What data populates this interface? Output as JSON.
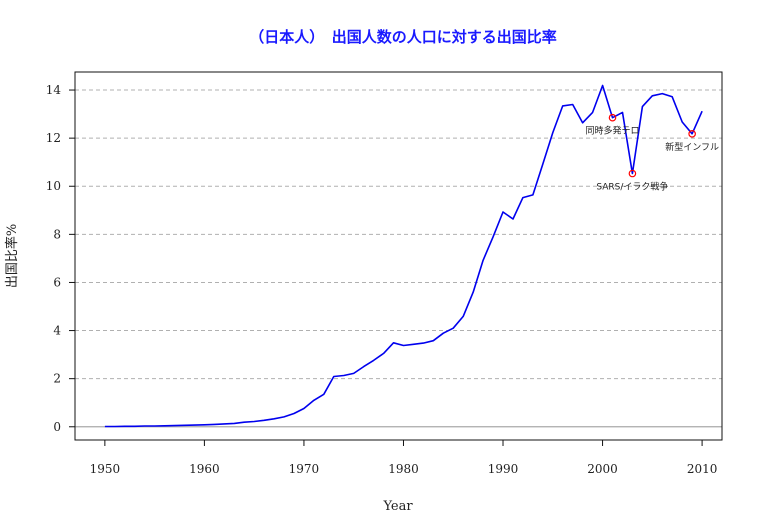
{
  "chart_data": {
    "type": "line",
    "title": "（日本人）　出国人数の人口に対する出国比率",
    "xlabel": "Year",
    "ylabel": "出国比率%",
    "xlim": [
      1947,
      2012
    ],
    "ylim": [
      -0.55,
      14.75
    ],
    "xticks": [
      1950,
      1960,
      1970,
      1980,
      1990,
      2000,
      2010
    ],
    "yticks": [
      0,
      2,
      4,
      6,
      8,
      10,
      12,
      14
    ],
    "grid": "horizontal dashed",
    "colors": {
      "line": "#0000ee",
      "marker": "#ff0000",
      "zero_line": "#aaaaaa",
      "grid": "#b0b0b0"
    },
    "series": [
      {
        "x": [
          1950,
          1951,
          1952,
          1953,
          1954,
          1955,
          1956,
          1957,
          1958,
          1959,
          1960,
          1961,
          1962,
          1963,
          1964,
          1965,
          1966,
          1967,
          1968,
          1969,
          1970,
          1971,
          1972,
          1973,
          1974,
          1975,
          1976,
          1977,
          1978,
          1979,
          1980,
          1981,
          1982,
          1983,
          1984,
          1985,
          1986,
          1987,
          1988,
          1989,
          1990,
          1991,
          1992,
          1993,
          1994,
          1995,
          1996,
          1997,
          1998,
          1999,
          2000,
          2001,
          2002,
          2003,
          2004,
          2005,
          2006,
          2007,
          2008,
          2009,
          2010
        ],
        "values": [
          0.01,
          0.01,
          0.02,
          0.02,
          0.03,
          0.03,
          0.04,
          0.05,
          0.06,
          0.07,
          0.08,
          0.1,
          0.12,
          0.14,
          0.19,
          0.22,
          0.27,
          0.33,
          0.41,
          0.55,
          0.76,
          1.1,
          1.35,
          2.09,
          2.13,
          2.22,
          2.5,
          2.76,
          3.05,
          3.49,
          3.38,
          3.43,
          3.48,
          3.58,
          3.89,
          4.1,
          4.59,
          5.6,
          6.92,
          7.9,
          8.93,
          8.64,
          9.53,
          9.64,
          10.92,
          12.23,
          13.34,
          13.4,
          12.64,
          13.07,
          14.19,
          12.85,
          13.07,
          10.53,
          13.31,
          13.76,
          13.85,
          13.72,
          12.67,
          12.18,
          13.12
        ]
      }
    ],
    "annotations": [
      {
        "x": 2001,
        "y": 12.85,
        "label": "同時多発テロ"
      },
      {
        "x": 2003,
        "y": 10.53,
        "label": "SARS/イラク戦争"
      },
      {
        "x": 2009,
        "y": 12.18,
        "label": "新型インフル"
      }
    ]
  }
}
